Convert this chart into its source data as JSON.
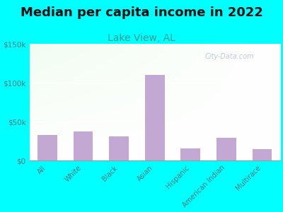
{
  "title": "Median per capita income in 2022",
  "subtitle": "Lake View, AL",
  "categories": [
    "All",
    "White",
    "Black",
    "Asian",
    "Hispanic",
    "American Indian",
    "Multirace"
  ],
  "values": [
    33000,
    38000,
    31000,
    110000,
    16000,
    29000,
    15000
  ],
  "bar_color": "#c4a8d4",
  "title_fontsize": 13,
  "subtitle_fontsize": 10,
  "subtitle_color": "#2a9d8f",
  "tick_color": "#4a7a7a",
  "background_outer": "#00ffff",
  "ylim": [
    0,
    150000
  ],
  "yticks": [
    0,
    50000,
    100000,
    150000
  ],
  "ytick_labels": [
    "$0",
    "$50k",
    "$100k",
    "$150k"
  ],
  "watermark": "City-Data.com"
}
